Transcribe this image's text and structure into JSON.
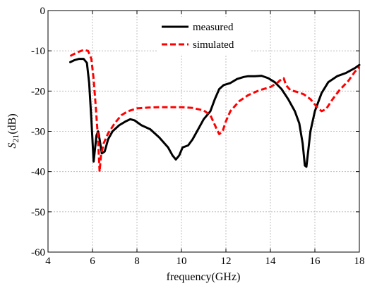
{
  "chart_data": {
    "type": "line",
    "xlabel": "frequency(GHz)",
    "ylabel": {
      "main": "S",
      "sub": "21",
      "unit": "(dB)"
    },
    "xlim": [
      4,
      18
    ],
    "ylim": [
      -60,
      0
    ],
    "xticks": [
      4,
      6,
      8,
      10,
      12,
      14,
      16,
      18
    ],
    "yticks": [
      -60,
      -50,
      -40,
      -30,
      -20,
      -10,
      0
    ],
    "grid": true,
    "legend_position": "top-center",
    "series": [
      {
        "name": "measured",
        "color": "#000000",
        "dash": "solid",
        "points": [
          [
            5.0,
            -12.8
          ],
          [
            5.2,
            -12.3
          ],
          [
            5.4,
            -12.0
          ],
          [
            5.6,
            -12.0
          ],
          [
            5.75,
            -13.0
          ],
          [
            5.85,
            -18.0
          ],
          [
            5.95,
            -27.0
          ],
          [
            6.05,
            -37.5
          ],
          [
            6.12,
            -34.0
          ],
          [
            6.18,
            -31.0
          ],
          [
            6.25,
            -30.0
          ],
          [
            6.32,
            -32.0
          ],
          [
            6.42,
            -35.5
          ],
          [
            6.55,
            -35.0
          ],
          [
            6.7,
            -32.0
          ],
          [
            6.9,
            -30.0
          ],
          [
            7.2,
            -28.5
          ],
          [
            7.5,
            -27.5
          ],
          [
            7.7,
            -27.0
          ],
          [
            7.9,
            -27.3
          ],
          [
            8.2,
            -28.5
          ],
          [
            8.6,
            -29.5
          ],
          [
            9.0,
            -31.5
          ],
          [
            9.4,
            -34.0
          ],
          [
            9.6,
            -36.0
          ],
          [
            9.75,
            -37.0
          ],
          [
            9.9,
            -36.0
          ],
          [
            10.05,
            -34.0
          ],
          [
            10.3,
            -33.5
          ],
          [
            10.5,
            -32.0
          ],
          [
            10.8,
            -29.0
          ],
          [
            11.0,
            -27.0
          ],
          [
            11.3,
            -25.0
          ],
          [
            11.5,
            -22.0
          ],
          [
            11.7,
            -19.5
          ],
          [
            11.9,
            -18.5
          ],
          [
            12.2,
            -18.0
          ],
          [
            12.5,
            -17.0
          ],
          [
            12.8,
            -16.5
          ],
          [
            13.0,
            -16.3
          ],
          [
            13.3,
            -16.3
          ],
          [
            13.6,
            -16.2
          ],
          [
            13.9,
            -16.8
          ],
          [
            14.2,
            -17.8
          ],
          [
            14.5,
            -19.5
          ],
          [
            14.8,
            -22.0
          ],
          [
            15.1,
            -25.0
          ],
          [
            15.3,
            -28.0
          ],
          [
            15.45,
            -33.0
          ],
          [
            15.55,
            -38.5
          ],
          [
            15.62,
            -38.8
          ],
          [
            15.7,
            -35.0
          ],
          [
            15.8,
            -30.0
          ],
          [
            16.0,
            -25.0
          ],
          [
            16.3,
            -20.5
          ],
          [
            16.6,
            -17.8
          ],
          [
            17.0,
            -16.3
          ],
          [
            17.4,
            -15.5
          ],
          [
            17.8,
            -14.3
          ],
          [
            18.0,
            -13.5
          ]
        ]
      },
      {
        "name": "simulated",
        "color": "#ff0000",
        "dash": "dashed",
        "points": [
          [
            5.0,
            -11.3
          ],
          [
            5.2,
            -10.7
          ],
          [
            5.4,
            -10.2
          ],
          [
            5.6,
            -9.8
          ],
          [
            5.8,
            -10.0
          ],
          [
            5.95,
            -12.0
          ],
          [
            6.05,
            -17.0
          ],
          [
            6.15,
            -24.0
          ],
          [
            6.25,
            -32.0
          ],
          [
            6.32,
            -40.0
          ],
          [
            6.38,
            -36.0
          ],
          [
            6.5,
            -33.0
          ],
          [
            6.7,
            -30.5
          ],
          [
            7.0,
            -28.0
          ],
          [
            7.3,
            -26.0
          ],
          [
            7.6,
            -25.0
          ],
          [
            8.0,
            -24.3
          ],
          [
            8.5,
            -24.1
          ],
          [
            9.0,
            -24.0
          ],
          [
            9.5,
            -24.0
          ],
          [
            10.0,
            -24.0
          ],
          [
            10.5,
            -24.2
          ],
          [
            11.0,
            -24.8
          ],
          [
            11.3,
            -26.0
          ],
          [
            11.55,
            -29.0
          ],
          [
            11.7,
            -30.7
          ],
          [
            11.85,
            -30.0
          ],
          [
            12.0,
            -27.5
          ],
          [
            12.2,
            -25.0
          ],
          [
            12.6,
            -22.5
          ],
          [
            13.0,
            -21.0
          ],
          [
            13.5,
            -19.8
          ],
          [
            14.0,
            -19.0
          ],
          [
            14.3,
            -18.0
          ],
          [
            14.5,
            -17.0
          ],
          [
            14.6,
            -16.8
          ],
          [
            14.7,
            -18.5
          ],
          [
            14.9,
            -19.8
          ],
          [
            15.2,
            -20.2
          ],
          [
            15.5,
            -20.8
          ],
          [
            15.8,
            -22.0
          ],
          [
            16.1,
            -24.0
          ],
          [
            16.3,
            -25.0
          ],
          [
            16.5,
            -24.5
          ],
          [
            16.8,
            -22.0
          ],
          [
            17.1,
            -19.8
          ],
          [
            17.5,
            -17.5
          ],
          [
            17.8,
            -15.2
          ],
          [
            18.0,
            -14.0
          ]
        ]
      }
    ]
  }
}
